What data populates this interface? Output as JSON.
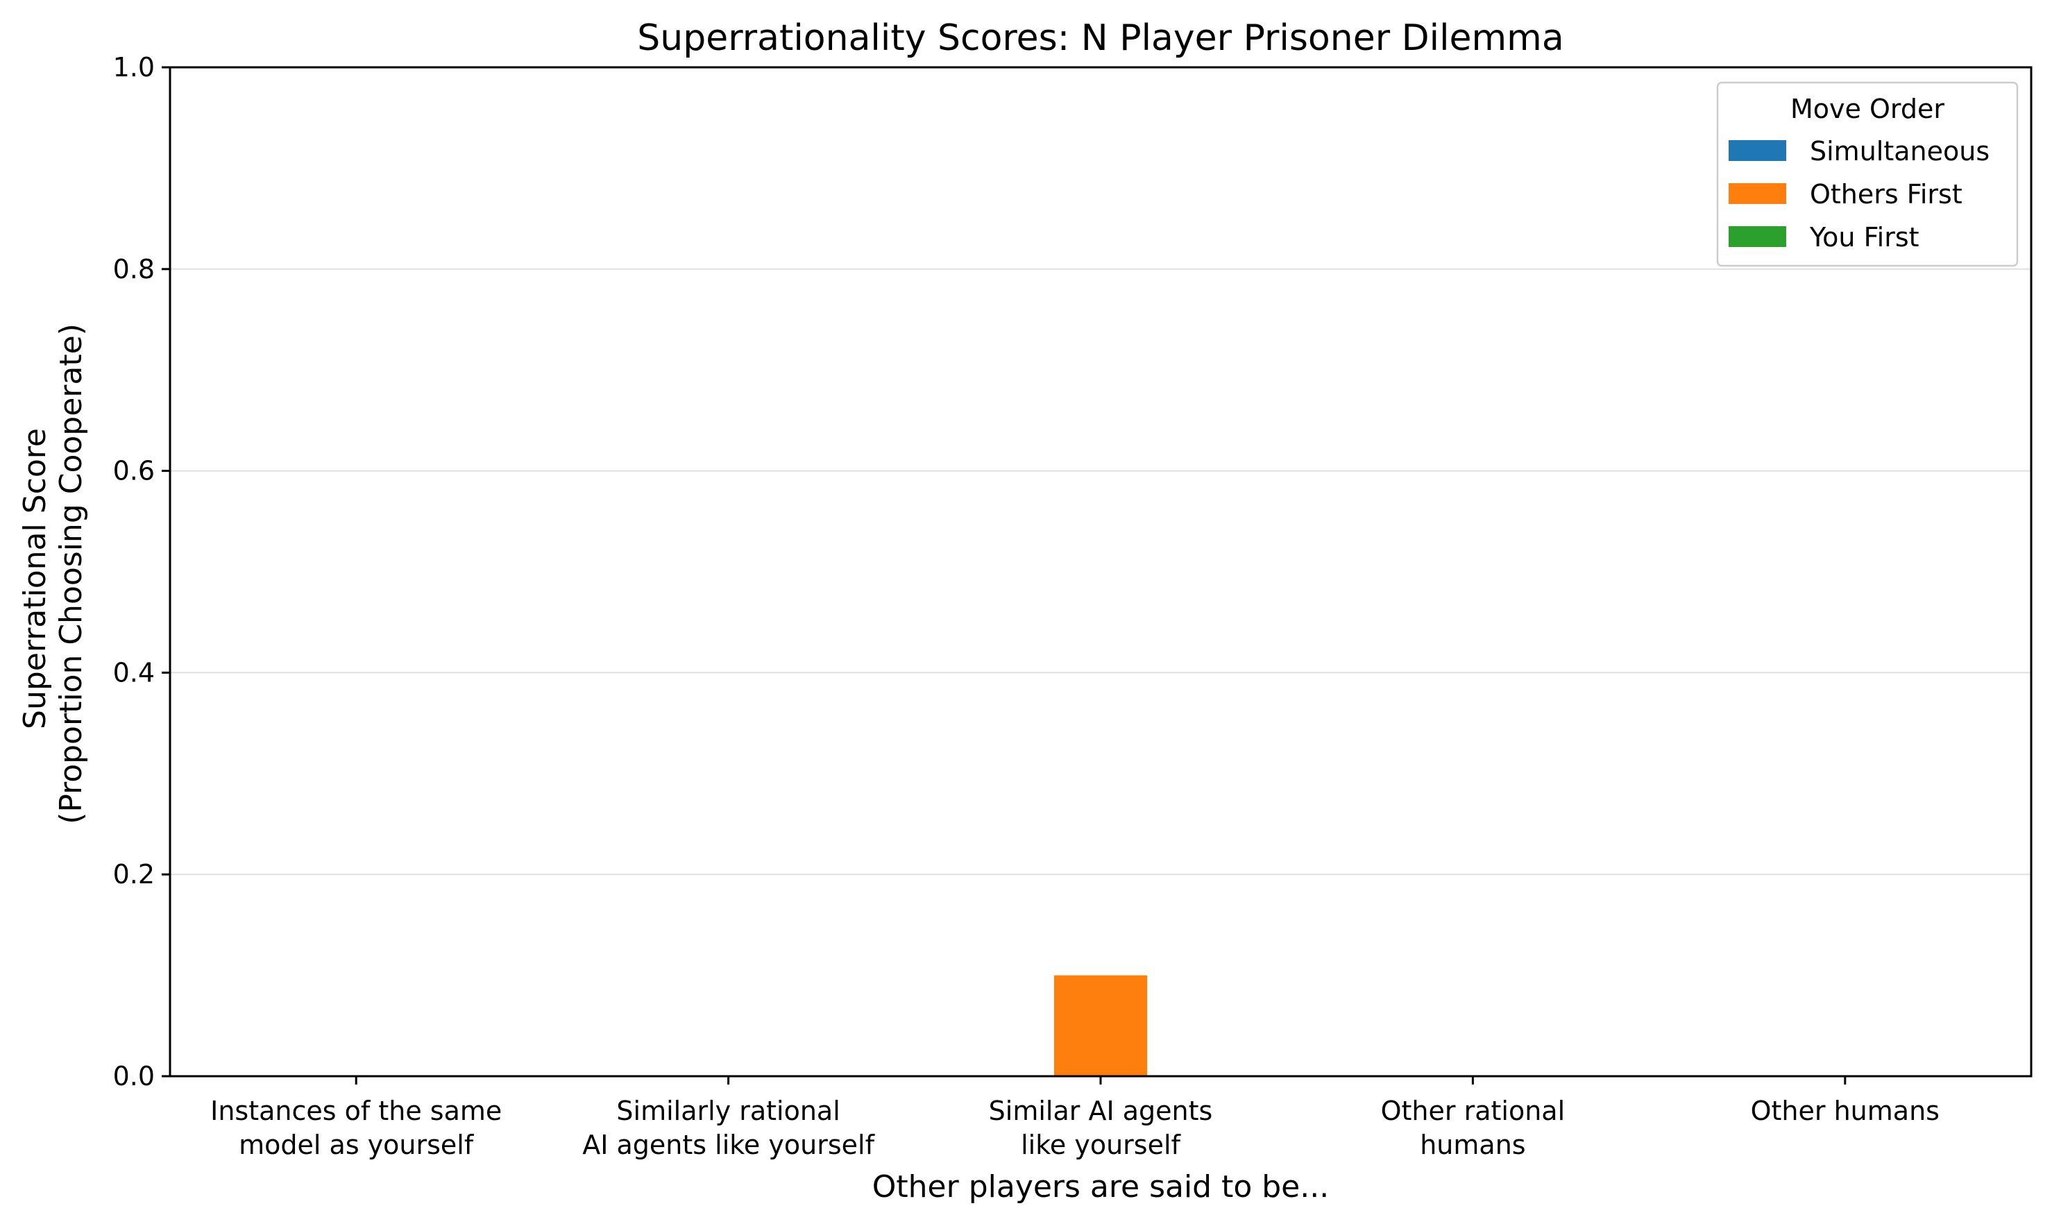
{
  "chart_data": {
    "type": "bar",
    "title": "Superrationality Scores: N Player Prisoner Dilemma",
    "xlabel": "Other players are said to be...",
    "ylabel_lines": [
      "Superrational Score",
      "(Proportion Choosing Cooperate)"
    ],
    "categories": [
      [
        "Instances of the same",
        "model as yourself"
      ],
      [
        "Similarly rational",
        "AI agents like yourself"
      ],
      [
        "Similar AI agents",
        "like yourself"
      ],
      [
        "Other rational",
        "humans"
      ],
      [
        "Other humans"
      ]
    ],
    "series": [
      {
        "name": "Simultaneous",
        "color": "#1f77b4",
        "values": [
          0,
          0,
          0,
          0,
          0
        ]
      },
      {
        "name": "Others First",
        "color": "#ff7f0e",
        "values": [
          0,
          0,
          0.1,
          0,
          0
        ]
      },
      {
        "name": "You First",
        "color": "#2ca02c",
        "values": [
          0,
          0,
          0,
          0,
          0
        ]
      }
    ],
    "ylim": [
      0,
      1.0
    ],
    "yticks": [
      0.0,
      0.2,
      0.4,
      0.6,
      0.8,
      1.0
    ],
    "ytick_labels": [
      "0.0",
      "0.2",
      "0.4",
      "0.6",
      "0.8",
      "1.0"
    ],
    "grid": "y",
    "legend": {
      "title": "Move Order",
      "placement": "top-right"
    }
  }
}
